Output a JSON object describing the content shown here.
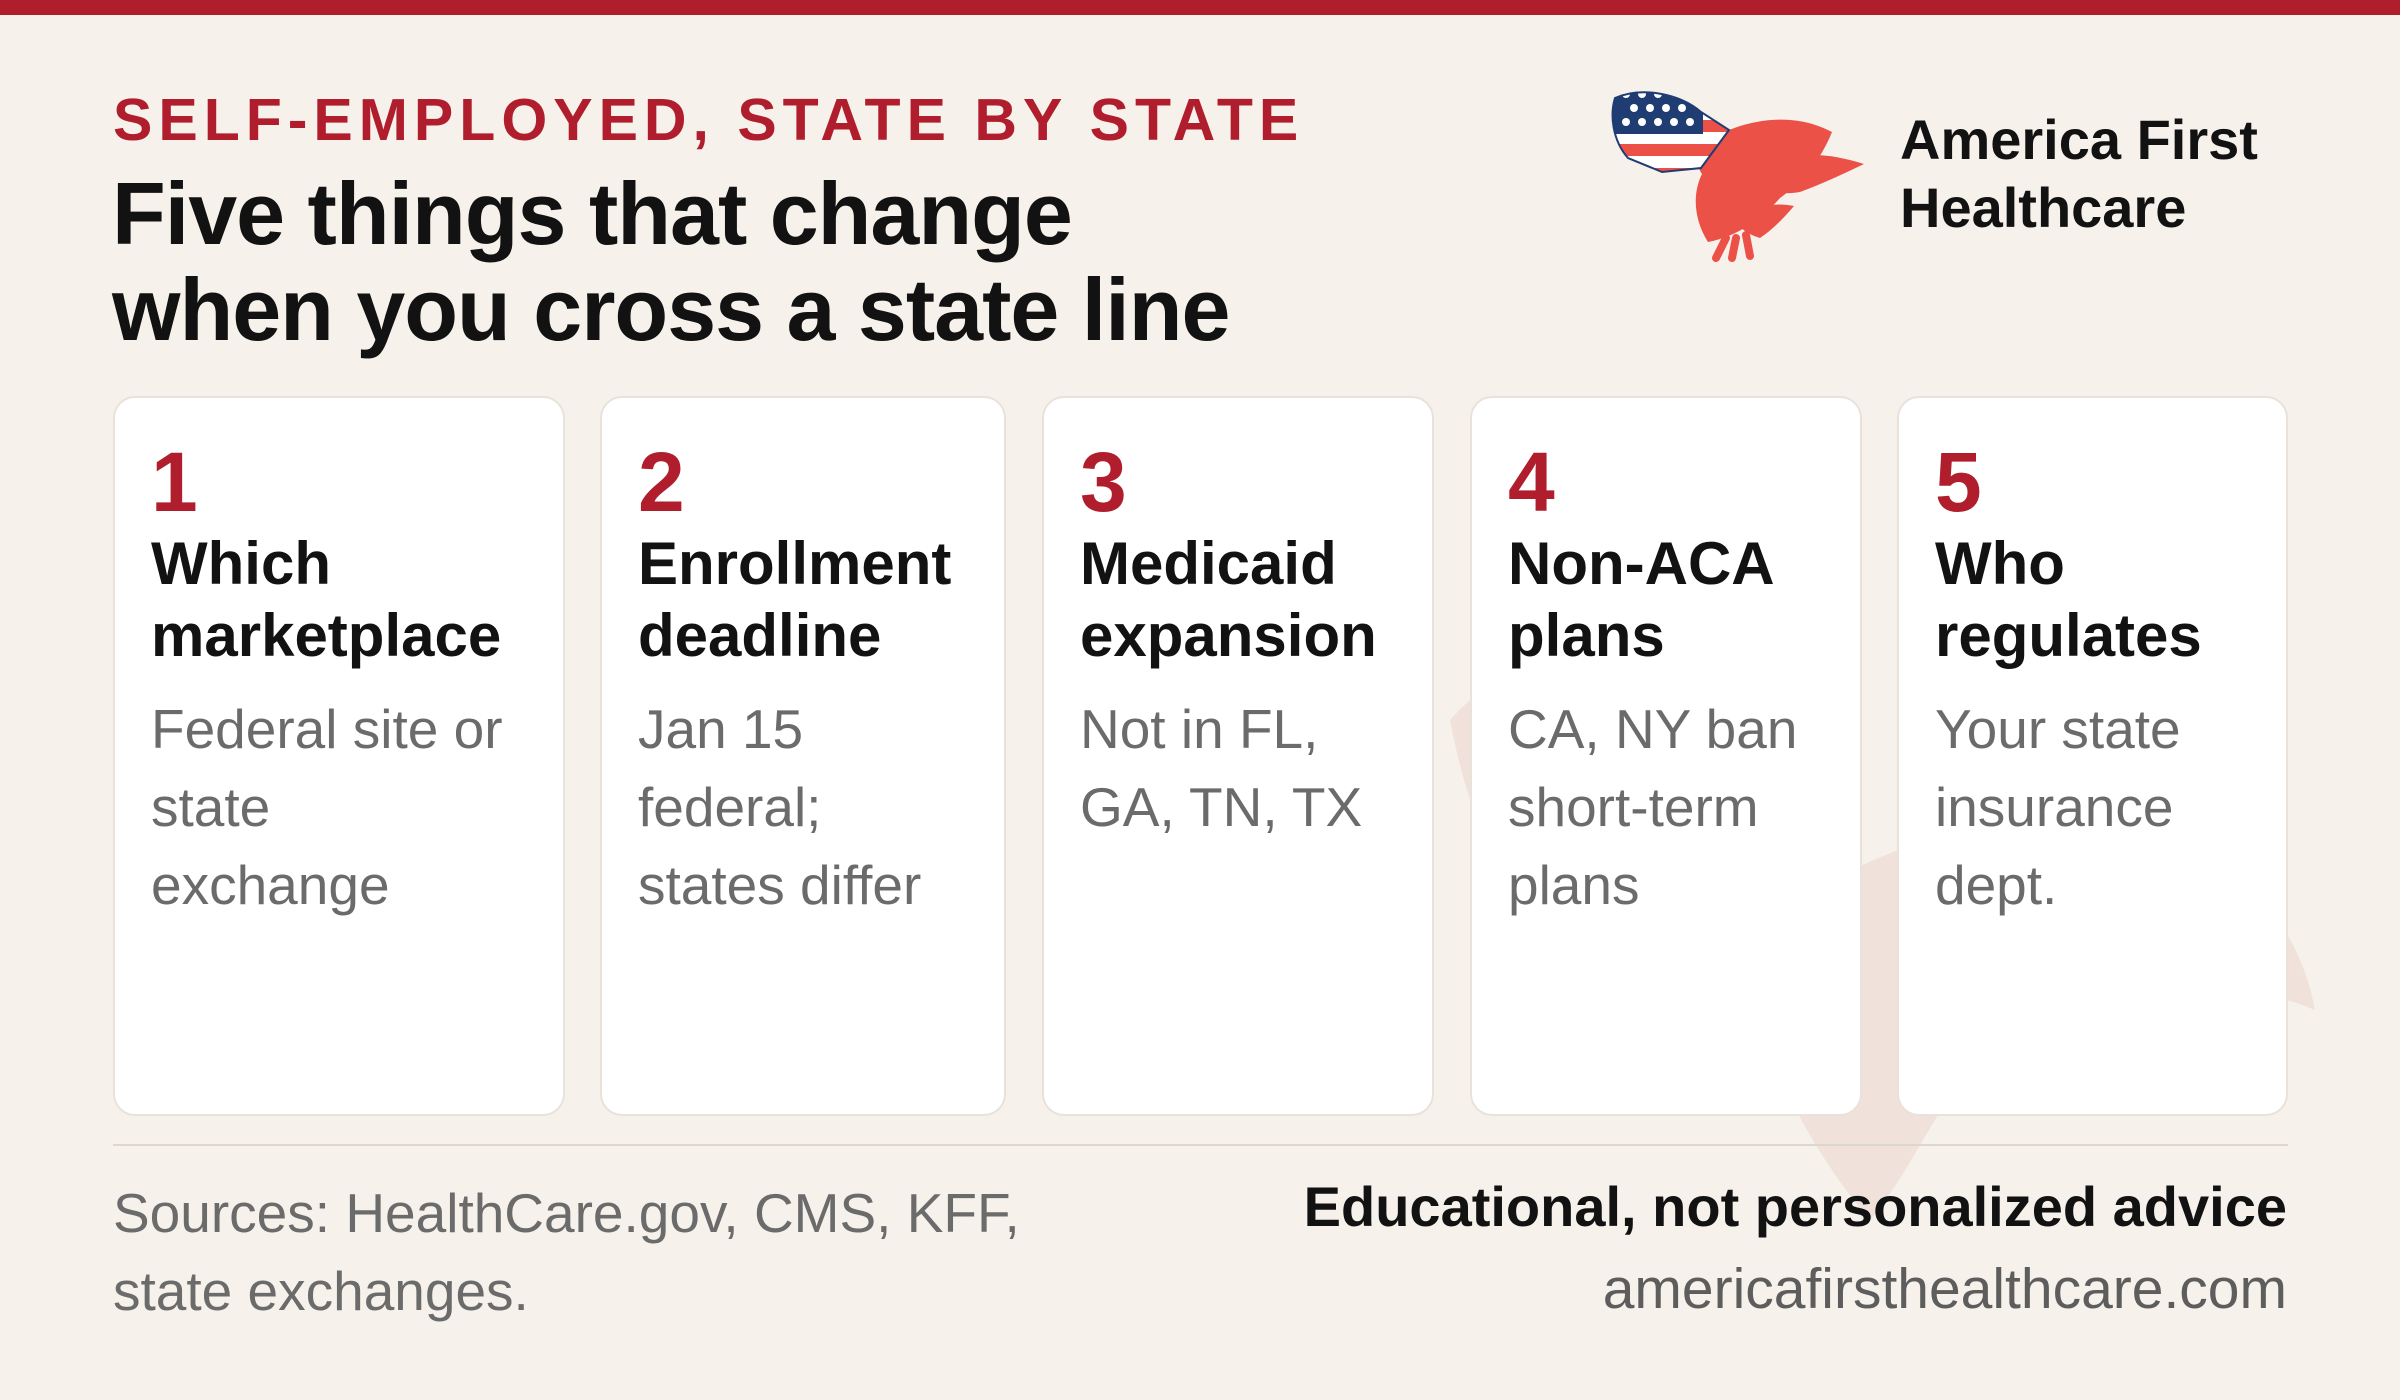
{
  "header": {
    "kicker": "SELF-EMPLOYED, STATE BY STATE",
    "headline_line1": "Five things that change",
    "headline_line2": "when you cross a state line"
  },
  "brand": {
    "name_line1": "America First",
    "name_line2": "Healthcare",
    "logo_icon": "eagle-flag-icon"
  },
  "cards": [
    {
      "number": "1",
      "title_line1": "Which",
      "title_line2": "marketplace",
      "desc_line1": "Federal site or",
      "desc_line2": "state",
      "desc_line3": "exchange"
    },
    {
      "number": "2",
      "title_line1": "Enrollment",
      "title_line2": "deadline",
      "desc_line1": "Jan 15",
      "desc_line2": "federal;",
      "desc_line3": "states differ"
    },
    {
      "number": "3",
      "title_line1": "Medicaid",
      "title_line2": "expansion",
      "desc_line1": "Not in FL,",
      "desc_line2": "GA, TN, TX",
      "desc_line3": ""
    },
    {
      "number": "4",
      "title_line1": "Non-ACA",
      "title_line2": "plans",
      "desc_line1": "CA, NY ban",
      "desc_line2": "short-term",
      "desc_line3": "plans"
    },
    {
      "number": "5",
      "title_line1": "Who",
      "title_line2": "regulates",
      "desc_line1": "Your state",
      "desc_line2": "insurance",
      "desc_line3": "dept."
    }
  ],
  "footer": {
    "sources_line1": "Sources: HealthCare.gov, CMS, KFF,",
    "sources_line2": "state exchanges.",
    "disclaimer": "Educational, not personalized advice",
    "website": "americafirsthealthcare.com"
  },
  "colors": {
    "accent_red": "#b01e2d",
    "background": "#f6f1ea",
    "card": "#ffffff",
    "headline": "#121212",
    "muted_text": "#6b6b6b"
  }
}
